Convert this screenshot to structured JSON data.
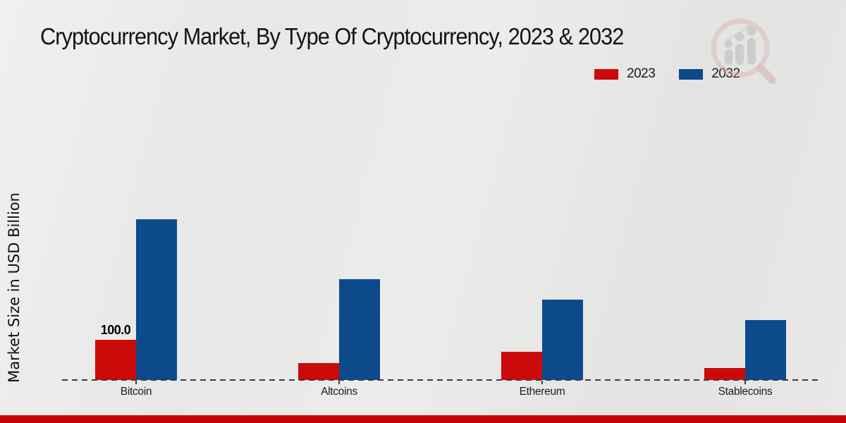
{
  "chart_data": {
    "type": "bar",
    "title": "Cryptocurrency Market, By Type Of Cryptocurrency, 2023 & 2032",
    "ylabel": "Market Size in USD Billion",
    "xlabel": "",
    "categories": [
      "Bitcoin",
      "Altcoins",
      "Ethereum",
      "Stablecoins"
    ],
    "series": [
      {
        "name": "2023",
        "color": "#cc0a0a",
        "values": [
          100.0,
          42,
          70,
          30
        ]
      },
      {
        "name": "2032",
        "color": "#0d4a8c",
        "values": [
          400,
          250,
          200,
          150
        ]
      }
    ],
    "data_labels": [
      {
        "category": "Bitcoin",
        "series": "2023",
        "label": "100.0"
      }
    ],
    "legend_position": "top-right",
    "grid": false,
    "value_axis_ticks_visible": false,
    "baseline_style": "dashed",
    "ylim": [
      0,
      430
    ]
  },
  "icons": {
    "watermark": "magnifier-growth-chart-logo"
  },
  "colors": {
    "series_2023": "#cc0a0a",
    "series_2032": "#0d4a8c",
    "footer_strip": "#c40404",
    "baseline": "#3c3c3c",
    "background": "#e9e9e8"
  }
}
